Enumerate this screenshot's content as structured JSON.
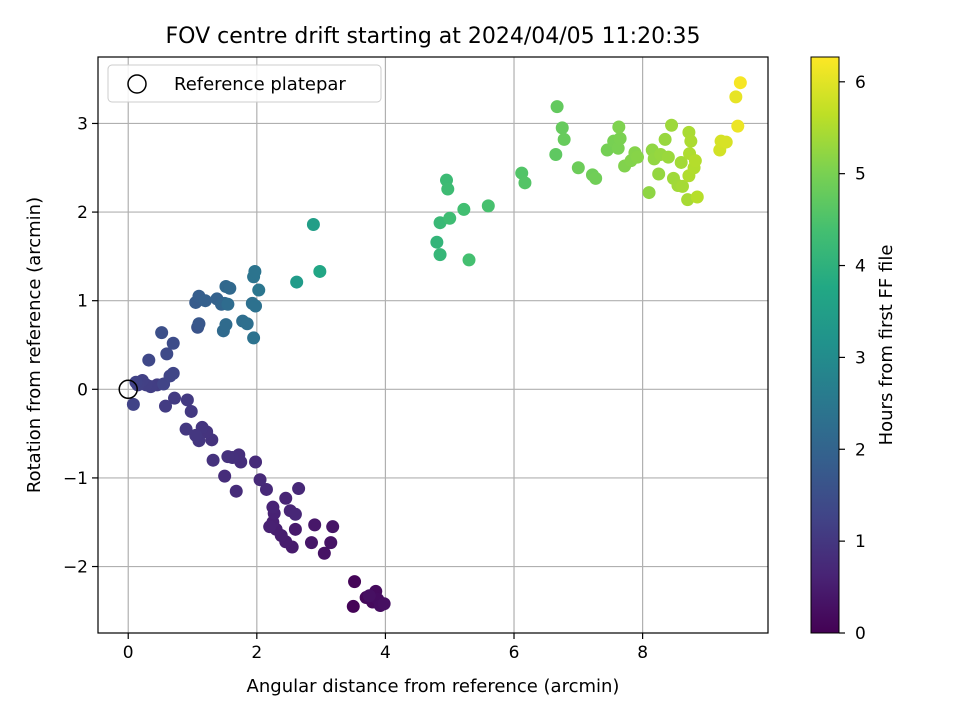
{
  "chart_data": {
    "type": "scatter",
    "title": "FOV centre drift starting at 2024/04/05 11:20:35",
    "xlabel": "Angular distance from reference (arcmin)",
    "ylabel": "Rotation from reference (arcmin)",
    "xlim": [
      -0.47,
      9.95
    ],
    "ylim": [
      -2.75,
      3.75
    ],
    "xticks": [
      0,
      2,
      4,
      6,
      8
    ],
    "xtick_labels": [
      "0",
      "2",
      "4",
      "6",
      "8"
    ],
    "yticks": [
      -2,
      -1,
      0,
      1,
      2,
      3
    ],
    "ytick_labels": [
      "−2",
      "−1",
      "0",
      "1",
      "2",
      "3"
    ],
    "grid": true,
    "legend": {
      "position": "top-left",
      "entries": [
        {
          "label": "Reference platepar",
          "marker": "open-circle",
          "color": "#000000"
        }
      ]
    },
    "reference_point": {
      "x": 0,
      "y": 0,
      "label": "Reference platepar"
    },
    "colorbar": {
      "label": "Hours from first FF file",
      "range": [
        0,
        6.27
      ],
      "ticks": [
        0,
        1,
        2,
        3,
        4,
        5,
        6
      ],
      "tick_labels": [
        "0",
        "1",
        "2",
        "3",
        "4",
        "5",
        "6"
      ],
      "colormap": [
        "#440154",
        "#482475",
        "#414487",
        "#355f8d",
        "#2a788e",
        "#21918c",
        "#22a884",
        "#44bf70",
        "#7ad151",
        "#bddf26",
        "#fde725"
      ]
    },
    "points": [
      {
        "x": 3.5,
        "y": -2.45,
        "c": 0.05
      },
      {
        "x": 3.52,
        "y": -2.17,
        "c": 0.08
      },
      {
        "x": 3.7,
        "y": -2.35,
        "c": 0.12
      },
      {
        "x": 3.8,
        "y": -2.4,
        "c": 0.15
      },
      {
        "x": 3.85,
        "y": -2.28,
        "c": 0.18
      },
      {
        "x": 3.88,
        "y": -2.37,
        "c": 0.2
      },
      {
        "x": 3.92,
        "y": -2.44,
        "c": 0.22
      },
      {
        "x": 3.98,
        "y": -2.42,
        "c": 0.25
      },
      {
        "x": 3.75,
        "y": -2.33,
        "c": 0.27
      },
      {
        "x": 3.05,
        "y": -1.85,
        "c": 0.3
      },
      {
        "x": 3.15,
        "y": -1.73,
        "c": 0.32
      },
      {
        "x": 3.18,
        "y": -1.55,
        "c": 0.35
      },
      {
        "x": 2.85,
        "y": -1.73,
        "c": 0.38
      },
      {
        "x": 2.9,
        "y": -1.53,
        "c": 0.4
      },
      {
        "x": 2.6,
        "y": -1.58,
        "c": 0.43
      },
      {
        "x": 2.55,
        "y": -1.78,
        "c": 0.46
      },
      {
        "x": 2.45,
        "y": -1.72,
        "c": 0.48
      },
      {
        "x": 2.38,
        "y": -1.65,
        "c": 0.5
      },
      {
        "x": 2.3,
        "y": -1.58,
        "c": 0.52
      },
      {
        "x": 2.25,
        "y": -1.5,
        "c": 0.55
      },
      {
        "x": 2.2,
        "y": -1.55,
        "c": 0.57
      },
      {
        "x": 2.27,
        "y": -1.4,
        "c": 0.6
      },
      {
        "x": 2.25,
        "y": -1.33,
        "c": 0.62
      },
      {
        "x": 2.45,
        "y": -1.23,
        "c": 0.64
      },
      {
        "x": 2.52,
        "y": -1.37,
        "c": 0.66
      },
      {
        "x": 2.6,
        "y": -1.41,
        "c": 0.68
      },
      {
        "x": 2.65,
        "y": -1.12,
        "c": 0.7
      },
      {
        "x": 2.15,
        "y": -1.13,
        "c": 0.72
      },
      {
        "x": 2.05,
        "y": -1.02,
        "c": 0.74
      },
      {
        "x": 1.98,
        "y": -0.82,
        "c": 0.76
      },
      {
        "x": 1.68,
        "y": -1.15,
        "c": 0.78
      },
      {
        "x": 1.5,
        "y": -0.98,
        "c": 0.8
      },
      {
        "x": 1.75,
        "y": -0.82,
        "c": 0.82
      },
      {
        "x": 1.72,
        "y": -0.74,
        "c": 0.84
      },
      {
        "x": 1.62,
        "y": -0.77,
        "c": 0.86
      },
      {
        "x": 1.55,
        "y": -0.76,
        "c": 0.88
      },
      {
        "x": 1.32,
        "y": -0.8,
        "c": 0.9
      },
      {
        "x": 1.3,
        "y": -0.57,
        "c": 0.92
      },
      {
        "x": 1.22,
        "y": -0.48,
        "c": 0.94
      },
      {
        "x": 1.15,
        "y": -0.43,
        "c": 0.96
      },
      {
        "x": 1.1,
        "y": -0.58,
        "c": 0.98
      },
      {
        "x": 1.05,
        "y": -0.52,
        "c": 1.0
      },
      {
        "x": 0.9,
        "y": -0.45,
        "c": 1.02
      },
      {
        "x": 0.98,
        "y": -0.25,
        "c": 1.04
      },
      {
        "x": 0.92,
        "y": -0.12,
        "c": 1.06
      },
      {
        "x": 0.72,
        "y": -0.1,
        "c": 1.08
      },
      {
        "x": 0.58,
        "y": -0.19,
        "c": 1.1
      },
      {
        "x": 0.45,
        "y": 0.05,
        "c": 1.12
      },
      {
        "x": 0.35,
        "y": 0.03,
        "c": 1.14
      },
      {
        "x": 0.28,
        "y": 0.05,
        "c": 1.16
      },
      {
        "x": 0.22,
        "y": 0.1,
        "c": 1.18
      },
      {
        "x": 0.15,
        "y": 0.05,
        "c": 1.2
      },
      {
        "x": 0.12,
        "y": 0.08,
        "c": 1.22
      },
      {
        "x": 0.08,
        "y": -0.17,
        "c": 1.24
      },
      {
        "x": 0.55,
        "y": 0.06,
        "c": 1.26
      },
      {
        "x": 0.65,
        "y": 0.15,
        "c": 1.28
      },
      {
        "x": 0.7,
        "y": 0.18,
        "c": 1.3
      },
      {
        "x": 0.32,
        "y": 0.33,
        "c": 1.35
      },
      {
        "x": 0.6,
        "y": 0.4,
        "c": 1.4
      },
      {
        "x": 0.7,
        "y": 0.52,
        "c": 1.45
      },
      {
        "x": 0.52,
        "y": 0.64,
        "c": 1.5
      },
      {
        "x": 1.08,
        "y": 0.7,
        "c": 1.6
      },
      {
        "x": 1.1,
        "y": 0.74,
        "c": 1.7
      },
      {
        "x": 1.05,
        "y": 0.98,
        "c": 1.8
      },
      {
        "x": 1.1,
        "y": 1.05,
        "c": 1.85
      },
      {
        "x": 1.2,
        "y": 1.0,
        "c": 1.9
      },
      {
        "x": 1.38,
        "y": 1.02,
        "c": 1.95
      },
      {
        "x": 1.45,
        "y": 0.96,
        "c": 2.0
      },
      {
        "x": 1.5,
        "y": 0.97,
        "c": 2.05
      },
      {
        "x": 1.52,
        "y": 1.16,
        "c": 2.1
      },
      {
        "x": 1.58,
        "y": 1.14,
        "c": 2.12
      },
      {
        "x": 1.48,
        "y": 0.66,
        "c": 2.15
      },
      {
        "x": 1.52,
        "y": 0.73,
        "c": 2.18
      },
      {
        "x": 1.55,
        "y": 0.96,
        "c": 2.2
      },
      {
        "x": 1.78,
        "y": 0.77,
        "c": 2.25
      },
      {
        "x": 1.85,
        "y": 0.74,
        "c": 2.28
      },
      {
        "x": 1.93,
        "y": 0.97,
        "c": 2.3
      },
      {
        "x": 1.98,
        "y": 0.94,
        "c": 2.33
      },
      {
        "x": 1.95,
        "y": 0.58,
        "c": 2.36
      },
      {
        "x": 1.95,
        "y": 1.27,
        "c": 2.4
      },
      {
        "x": 1.97,
        "y": 1.33,
        "c": 2.42
      },
      {
        "x": 2.03,
        "y": 1.12,
        "c": 2.45
      },
      {
        "x": 2.62,
        "y": 1.21,
        "c": 3.4
      },
      {
        "x": 2.88,
        "y": 1.86,
        "c": 3.5
      },
      {
        "x": 2.98,
        "y": 1.33,
        "c": 3.7
      },
      {
        "x": 4.8,
        "y": 1.66,
        "c": 4.1
      },
      {
        "x": 4.85,
        "y": 1.52,
        "c": 4.15
      },
      {
        "x": 4.85,
        "y": 1.88,
        "c": 4.2
      },
      {
        "x": 4.95,
        "y": 2.36,
        "c": 4.25
      },
      {
        "x": 4.97,
        "y": 2.26,
        "c": 4.28
      },
      {
        "x": 5.0,
        "y": 1.93,
        "c": 4.3
      },
      {
        "x": 5.22,
        "y": 2.03,
        "c": 4.35
      },
      {
        "x": 5.3,
        "y": 1.46,
        "c": 4.38
      },
      {
        "x": 5.6,
        "y": 2.07,
        "c": 4.42
      },
      {
        "x": 6.12,
        "y": 2.44,
        "c": 4.55
      },
      {
        "x": 6.17,
        "y": 2.33,
        "c": 4.58
      },
      {
        "x": 6.65,
        "y": 2.65,
        "c": 4.7
      },
      {
        "x": 6.67,
        "y": 3.19,
        "c": 4.75
      },
      {
        "x": 6.75,
        "y": 2.95,
        "c": 4.78
      },
      {
        "x": 6.78,
        "y": 2.82,
        "c": 4.8
      },
      {
        "x": 7.0,
        "y": 2.5,
        "c": 4.85
      },
      {
        "x": 7.22,
        "y": 2.42,
        "c": 4.88
      },
      {
        "x": 7.27,
        "y": 2.38,
        "c": 4.9
      },
      {
        "x": 7.45,
        "y": 2.7,
        "c": 4.95
      },
      {
        "x": 7.55,
        "y": 2.8,
        "c": 4.98
      },
      {
        "x": 7.62,
        "y": 2.72,
        "c": 5.0
      },
      {
        "x": 7.65,
        "y": 2.83,
        "c": 5.02
      },
      {
        "x": 7.63,
        "y": 2.96,
        "c": 5.05
      },
      {
        "x": 7.72,
        "y": 2.52,
        "c": 5.08
      },
      {
        "x": 7.82,
        "y": 2.58,
        "c": 5.1
      },
      {
        "x": 7.88,
        "y": 2.67,
        "c": 5.12
      },
      {
        "x": 7.92,
        "y": 2.62,
        "c": 5.14
      },
      {
        "x": 8.1,
        "y": 2.22,
        "c": 5.2
      },
      {
        "x": 8.15,
        "y": 2.7,
        "c": 5.22
      },
      {
        "x": 8.18,
        "y": 2.6,
        "c": 5.24
      },
      {
        "x": 8.25,
        "y": 2.43,
        "c": 5.26
      },
      {
        "x": 8.28,
        "y": 2.65,
        "c": 5.28
      },
      {
        "x": 8.35,
        "y": 2.82,
        "c": 5.3
      },
      {
        "x": 8.4,
        "y": 2.62,
        "c": 5.32
      },
      {
        "x": 8.45,
        "y": 2.98,
        "c": 5.34
      },
      {
        "x": 8.48,
        "y": 2.38,
        "c": 5.36
      },
      {
        "x": 8.55,
        "y": 2.3,
        "c": 5.38
      },
      {
        "x": 8.6,
        "y": 2.56,
        "c": 5.4
      },
      {
        "x": 8.62,
        "y": 2.29,
        "c": 5.42
      },
      {
        "x": 8.7,
        "y": 2.14,
        "c": 5.44
      },
      {
        "x": 8.72,
        "y": 2.9,
        "c": 5.46
      },
      {
        "x": 8.75,
        "y": 2.8,
        "c": 5.48
      },
      {
        "x": 8.73,
        "y": 2.66,
        "c": 5.5
      },
      {
        "x": 8.72,
        "y": 2.41,
        "c": 5.52
      },
      {
        "x": 8.8,
        "y": 2.5,
        "c": 5.54
      },
      {
        "x": 8.82,
        "y": 2.58,
        "c": 5.56
      },
      {
        "x": 8.85,
        "y": 2.17,
        "c": 5.58
      },
      {
        "x": 9.2,
        "y": 2.7,
        "c": 5.85
      },
      {
        "x": 9.22,
        "y": 2.8,
        "c": 5.88
      },
      {
        "x": 9.3,
        "y": 2.79,
        "c": 5.9
      },
      {
        "x": 9.45,
        "y": 3.3,
        "c": 6.05
      },
      {
        "x": 9.48,
        "y": 2.97,
        "c": 6.1
      },
      {
        "x": 9.52,
        "y": 3.46,
        "c": 6.2
      }
    ]
  }
}
